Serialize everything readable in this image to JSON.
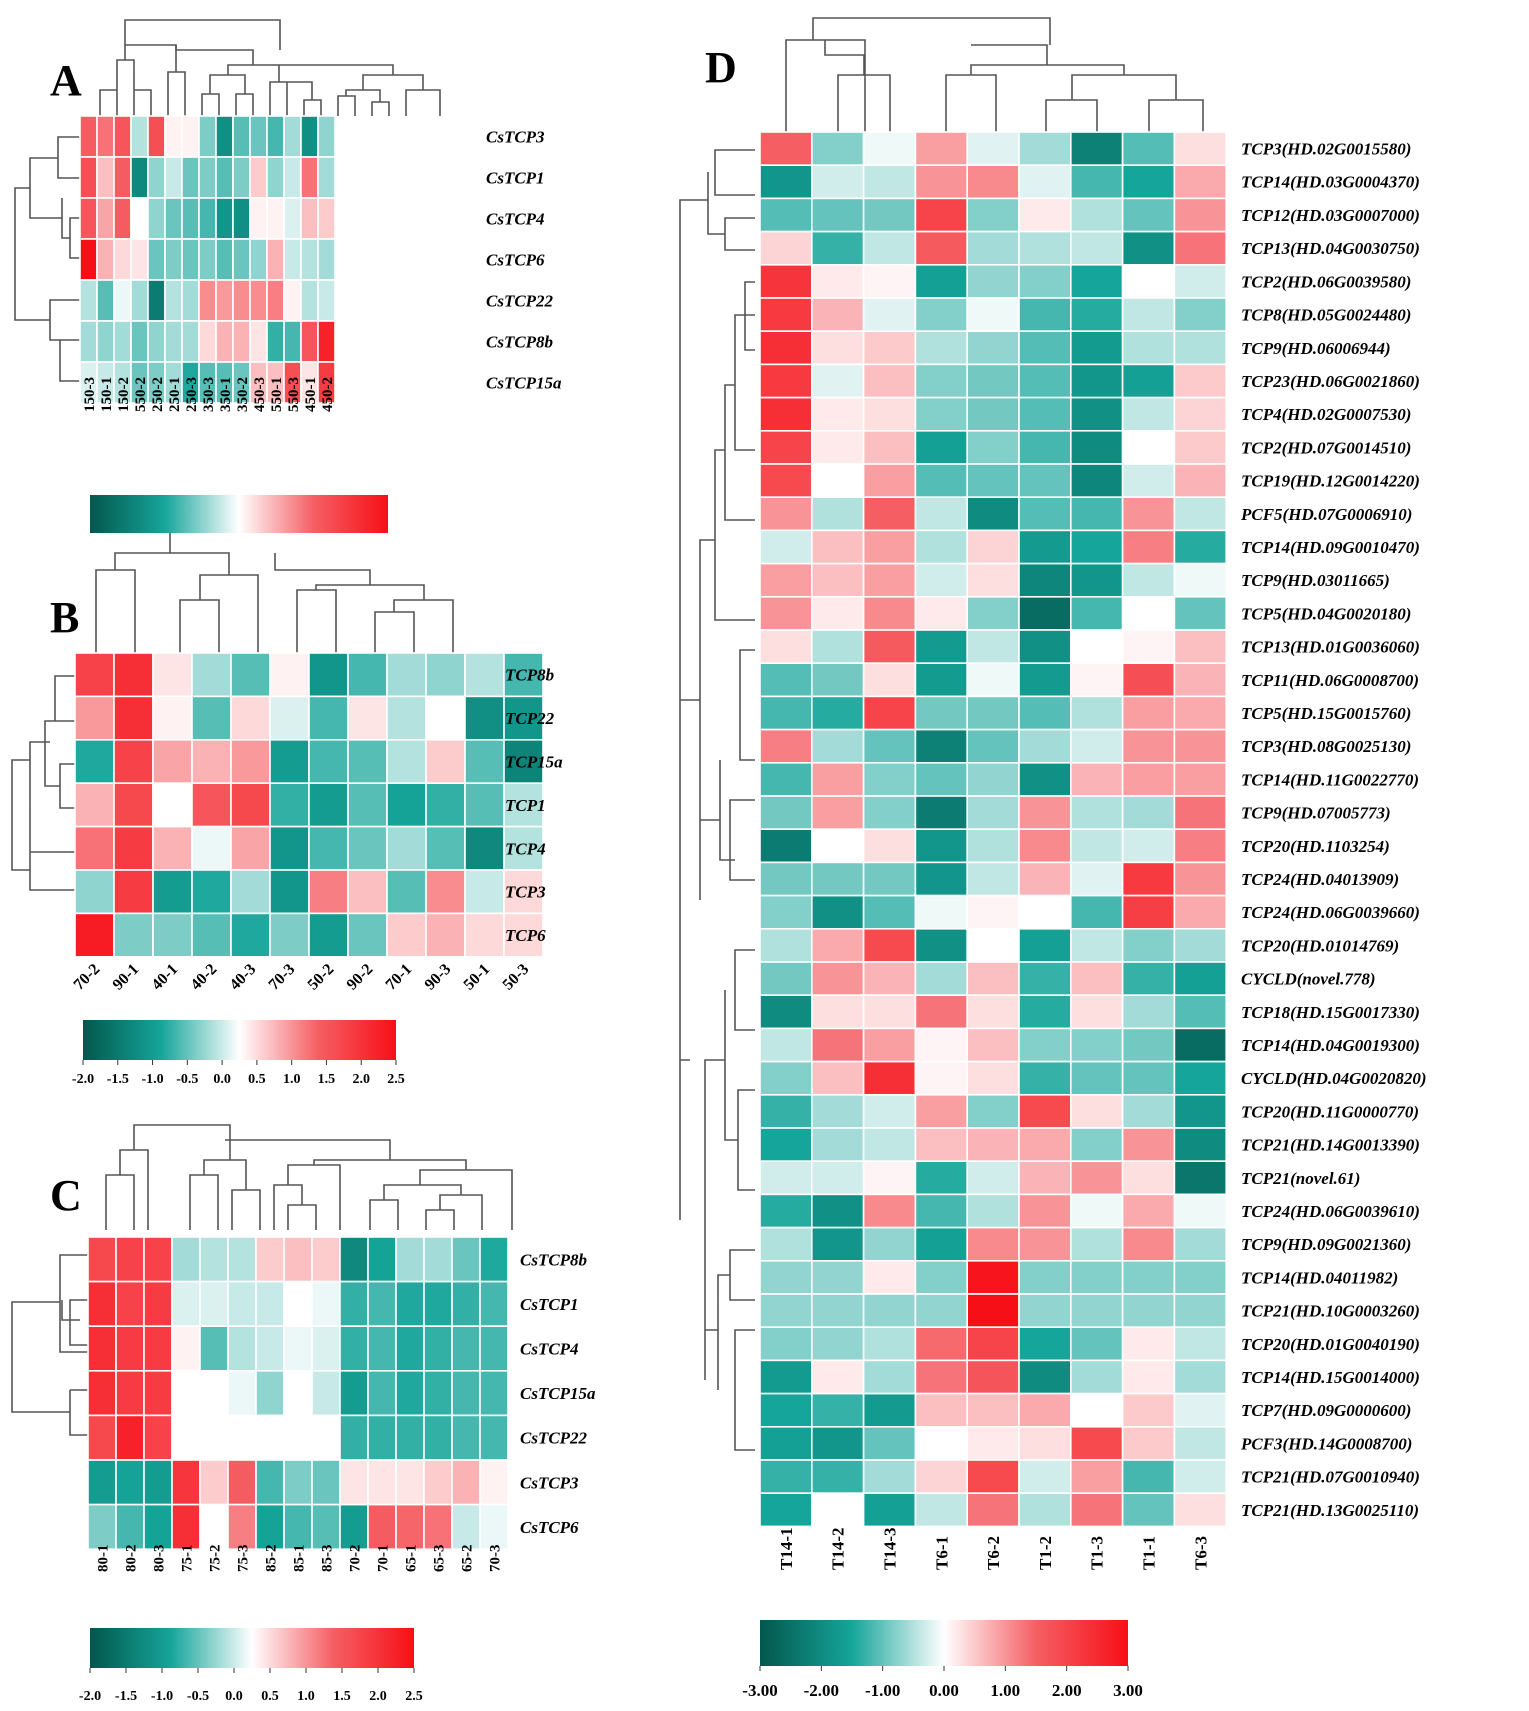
{
  "colors": {
    "low": "#03574d",
    "mid1": "#16a59a",
    "zero": "#ffffff",
    "mid2": "#f55f64",
    "high": "#f70f17"
  },
  "chart_data": [
    {
      "type": "heatmap",
      "panel": "A",
      "rows": [
        "CsTCP3",
        "CsTCP1",
        "CsTCP4",
        "CsTCP6",
        "CsTCP22",
        "CsTCP8b",
        "CsTCP15a"
      ],
      "columns": [
        "150-3",
        "150-1",
        "150-2",
        "550-2",
        "250-2",
        "250-1",
        "250-3",
        "350-3",
        "350-1",
        "350-2",
        "450-3",
        "550-1",
        "550-3",
        "450-1",
        "450-2"
      ],
      "values": [
        [
          1.3,
          1.1,
          1.4,
          -0.4,
          1.5,
          0.1,
          0.1,
          -0.7,
          -1.6,
          -0.9,
          -0.8,
          -1.0,
          -0.5,
          -1.6,
          -0.6
        ],
        [
          1.5,
          0.5,
          1.3,
          -1.7,
          -0.6,
          -0.3,
          -0.8,
          -0.7,
          -0.9,
          -0.7,
          0.4,
          -0.6,
          -0.3,
          1.1,
          -0.5
        ],
        [
          1.4,
          0.7,
          1.3,
          0.0,
          -0.6,
          -0.8,
          -0.9,
          -1.0,
          -1.5,
          -1.6,
          0.1,
          0.1,
          -0.2,
          0.5,
          0.4
        ],
        [
          2.5,
          0.6,
          0.3,
          0.2,
          -0.8,
          -0.7,
          -0.8,
          -0.7,
          -0.9,
          -0.8,
          -0.6,
          0.6,
          -0.3,
          -0.4,
          -0.5
        ],
        [
          -0.4,
          -0.9,
          -0.1,
          -0.5,
          -1.9,
          -0.4,
          -0.5,
          0.9,
          0.8,
          0.9,
          0.9,
          1.0,
          0.1,
          -0.4,
          -0.3
        ],
        [
          -0.5,
          -0.6,
          -0.5,
          -0.8,
          -0.6,
          -0.5,
          -0.5,
          0.3,
          0.6,
          0.6,
          0.2,
          -1.1,
          -1.0,
          1.4,
          2.2
        ],
        [
          -0.2,
          -0.3,
          -0.4,
          -0.8,
          -0.7,
          -0.5,
          -1.2,
          -0.9,
          -0.9,
          -0.8,
          0.5,
          0.5,
          1.5,
          0.2,
          1.8
        ]
      ],
      "colorbar": {
        "range": [
          -2.0,
          2.5
        ],
        "ticks": []
      }
    },
    {
      "type": "heatmap",
      "panel": "B",
      "rows": [
        "TCP8b",
        "TCP22",
        "TCP15a",
        "TCP1",
        "TCP4",
        "TCP3",
        "TCP6"
      ],
      "columns": [
        "70-2",
        "90-1",
        "40-1",
        "40-2",
        "40-3",
        "70-3",
        "50-2",
        "90-2",
        "70-1",
        "90-3",
        "50-1",
        "50-3"
      ],
      "values": [
        [
          1.7,
          2.0,
          0.2,
          -0.5,
          -0.9,
          0.1,
          -1.5,
          -1.0,
          -0.5,
          -0.6,
          -0.4,
          -1.0
        ],
        [
          0.8,
          2.0,
          0.1,
          -0.9,
          0.3,
          -0.2,
          -1.0,
          0.2,
          -0.4,
          0.0,
          -1.6,
          -1.5
        ],
        [
          -1.2,
          1.7,
          0.7,
          0.6,
          0.8,
          -1.4,
          -1.0,
          -0.9,
          -0.4,
          0.4,
          -0.9,
          -1.8
        ],
        [
          0.6,
          1.6,
          0.0,
          1.4,
          1.6,
          -1.1,
          -1.4,
          -0.9,
          -1.3,
          -1.1,
          -0.9,
          -0.4
        ],
        [
          1.1,
          1.8,
          0.6,
          -0.1,
          0.7,
          -1.5,
          -1.0,
          -0.8,
          -0.5,
          -0.9,
          -1.7,
          -0.4
        ],
        [
          -0.6,
          1.8,
          -1.4,
          -1.2,
          -0.5,
          -1.5,
          1.0,
          0.5,
          -0.9,
          0.9,
          -0.3,
          0.3
        ],
        [
          2.3,
          -0.7,
          -0.7,
          -0.9,
          -1.2,
          -0.7,
          -1.4,
          -0.8,
          0.4,
          0.6,
          0.3,
          0.3
        ]
      ],
      "colorbar": {
        "range": [
          -2.0,
          2.5
        ],
        "ticks": [
          "-2.0",
          "-1.5",
          "-1.0",
          "-0.5",
          "0.0",
          "0.5",
          "1.0",
          "1.5",
          "2.0",
          "2.5"
        ]
      }
    },
    {
      "type": "heatmap",
      "panel": "C",
      "rows": [
        "CsTCP8b",
        "CsTCP1",
        "CsTCP4",
        "CsTCP15a",
        "CsTCP22",
        "CsTCP3",
        "CsTCP6"
      ],
      "columns": [
        "80-1",
        "80-2",
        "80-3",
        "75-1",
        "75-2",
        "75-3",
        "85-2",
        "85-1",
        "85-3",
        "70-2",
        "70-1",
        "65-1",
        "65-3",
        "65-2",
        "70-3"
      ],
      "values": [
        [
          1.6,
          1.7,
          1.7,
          -0.5,
          -0.4,
          -0.4,
          0.4,
          0.5,
          0.4,
          -1.7,
          -1.3,
          -0.5,
          -0.5,
          -0.8,
          -1.2
        ],
        [
          2.0,
          1.7,
          1.8,
          -0.2,
          -0.2,
          -0.3,
          -0.3,
          0.0,
          -0.1,
          -1.1,
          -1.0,
          -1.2,
          -1.2,
          -1.1,
          -1.0
        ],
        [
          2.0,
          1.8,
          1.8,
          0.1,
          -0.9,
          -0.4,
          -0.3,
          -0.1,
          -0.2,
          -1.1,
          -1.0,
          -1.2,
          -1.1,
          -1.0,
          -1.0
        ],
        [
          2.0,
          1.8,
          1.8,
          0.0,
          0.0,
          -0.1,
          -0.6,
          0.0,
          -0.3,
          -1.4,
          -1.0,
          -1.2,
          -1.1,
          -1.0,
          -1.0
        ],
        [
          1.6,
          2.2,
          1.7,
          0.0,
          0.0,
          0.0,
          0.0,
          0.0,
          0.0,
          -1.1,
          -1.1,
          -1.1,
          -1.1,
          -1.0,
          -1.0
        ],
        [
          -1.4,
          -1.3,
          -1.4,
          1.9,
          0.4,
          1.3,
          -1.0,
          -0.7,
          -0.8,
          0.2,
          0.2,
          0.2,
          0.4,
          0.6,
          0.1
        ],
        [
          -0.7,
          -1.0,
          -1.3,
          2.0,
          0.0,
          1.0,
          -1.3,
          -1.0,
          -0.9,
          -1.4,
          1.3,
          1.2,
          1.1,
          -0.3,
          -0.1
        ]
      ],
      "colorbar": {
        "range": [
          -2.0,
          2.5
        ],
        "ticks": [
          "-2.0",
          "-1.5",
          "-1.0",
          "-0.5",
          "0.0",
          "0.5",
          "1.0",
          "1.5",
          "2.0",
          "2.5"
        ]
      }
    },
    {
      "type": "heatmap",
      "panel": "D",
      "rows": [
        "TCP3(HD.02G0015580)",
        "TCP14(HD.03G0004370)",
        "TCP12(HD.03G0007000)",
        "TCP13(HD.04G0030750)",
        "TCP2(HD.06G0039580)",
        "TCP8(HD.05G0024480)",
        "TCP9(HD.06006944)",
        "TCP23(HD.06G0021860)",
        "TCP4(HD.02G0007530)",
        "TCP2(HD.07G0014510)",
        "TCP19(HD.12G0014220)",
        "PCF5(HD.07G0006910)",
        "TCP14(HD.09G0010470)",
        "TCP9(HD.03011665)",
        "TCP5(HD.04G0020180)",
        "TCP13(HD.01G0036060)",
        "TCP11(HD.06G0008700)",
        "TCP5(HD.15G0015760)",
        "TCP3(HD.08G0025130)",
        "TCP14(HD.11G0022770)",
        "TCP9(HD.07005773)",
        "TCP20(HD.1103254)",
        "TCP24(HD.04013909)",
        "TCP24(HD.06G0039660)",
        "TCP20(HD.01014769)",
        "CYCLD(novel.778)",
        "TCP18(HD.15G0017330)",
        "TCP14(HD.04G0019300)",
        "CYCLD(HD.04G0020820)",
        "TCP20(HD.11G0000770)",
        "TCP21(HD.14G0013390)",
        "TCP21(novel.61)",
        "TCP24(HD.06G0039610)",
        "TCP9(HD.09G0021360)",
        "TCP14(HD.04011982)",
        "TCP21(HD.10G0003260)",
        "TCP20(HD.01G0040190)",
        "TCP14(HD.15G0014000)",
        "TCP7(HD.09G0000600)",
        "PCF3(HD.14G0008700)",
        "TCP21(HD.07G0010940)",
        "TCP21(HD.13G0025110)"
      ],
      "columns": [
        "T14-1",
        "T14-2",
        "T14-3",
        "T6-1",
        "T6-2",
        "T1-2",
        "T1-3",
        "T1-1",
        "T6-3"
      ],
      "values": [
        [
          1.5,
          -0.8,
          -0.1,
          0.9,
          -0.2,
          -0.6,
          -2.2,
          -1.1,
          0.3
        ],
        [
          -1.8,
          -0.3,
          -0.4,
          1.0,
          1.1,
          -0.2,
          -1.2,
          -1.5,
          0.8
        ],
        [
          -1.1,
          -1.0,
          -0.9,
          2.0,
          -0.8,
          0.2,
          -0.5,
          -1.0,
          1.0
        ],
        [
          0.4,
          -1.3,
          -0.4,
          1.6,
          -0.6,
          -0.5,
          -0.4,
          -1.9,
          1.3
        ],
        [
          2.3,
          0.2,
          0.1,
          -1.6,
          -0.7,
          -0.8,
          -1.5,
          0.0,
          -0.3
        ],
        [
          2.2,
          0.7,
          -0.2,
          -0.8,
          -0.1,
          -1.2,
          -1.4,
          -0.4,
          -0.8
        ],
        [
          2.4,
          0.3,
          0.5,
          -0.5,
          -0.7,
          -1.1,
          -1.7,
          -0.5,
          -0.5
        ],
        [
          2.2,
          -0.2,
          0.6,
          -0.8,
          -0.9,
          -1.1,
          -1.8,
          -1.6,
          0.5
        ],
        [
          2.4,
          0.2,
          0.3,
          -0.8,
          -0.9,
          -1.1,
          -1.9,
          -0.4,
          0.4
        ],
        [
          2.0,
          0.2,
          0.6,
          -1.6,
          -0.8,
          -1.2,
          -2.0,
          0.0,
          0.5
        ],
        [
          1.9,
          0.0,
          0.9,
          -1.1,
          -1.0,
          -1.0,
          -2.1,
          -0.3,
          0.7
        ],
        [
          1.0,
          -0.5,
          1.5,
          -0.4,
          -2.0,
          -1.1,
          -1.2,
          1.0,
          -0.4
        ],
        [
          -0.3,
          0.6,
          0.9,
          -0.5,
          0.4,
          -1.7,
          -1.5,
          1.2,
          -1.4
        ],
        [
          0.9,
          0.6,
          0.9,
          -0.3,
          0.3,
          -2.1,
          -1.8,
          -0.4,
          -0.1
        ],
        [
          1.0,
          0.2,
          1.1,
          0.2,
          -0.8,
          -2.6,
          -1.2,
          0.0,
          -1.0
        ],
        [
          0.3,
          -0.5,
          1.6,
          -1.7,
          -0.4,
          -1.9,
          0.0,
          0.1,
          0.6
        ],
        [
          -1.1,
          -0.9,
          0.3,
          -1.7,
          -0.1,
          -1.7,
          0.1,
          1.8,
          0.7
        ],
        [
          -1.2,
          -1.4,
          2.0,
          -0.9,
          -0.9,
          -1.1,
          -0.5,
          0.9,
          0.8
        ],
        [
          1.2,
          -0.6,
          -1.0,
          -2.2,
          -1.0,
          -0.6,
          -0.3,
          1.0,
          1.0
        ],
        [
          -1.2,
          0.9,
          -0.8,
          -1.0,
          -0.7,
          -1.9,
          0.7,
          0.9,
          0.9
        ],
        [
          -0.9,
          0.9,
          -0.8,
          -2.3,
          -0.6,
          1.0,
          -0.5,
          -0.6,
          1.3
        ],
        [
          -2.3,
          0.0,
          0.3,
          -1.8,
          -0.5,
          1.1,
          -0.4,
          -0.3,
          1.2
        ],
        [
          -0.9,
          -0.9,
          -0.9,
          -1.8,
          -0.4,
          0.7,
          -0.2,
          2.2,
          1.0
        ],
        [
          -0.8,
          -1.9,
          -1.1,
          -0.1,
          0.1,
          0.0,
          -1.2,
          2.1,
          0.8
        ],
        [
          -0.5,
          0.8,
          1.9,
          -1.9,
          0.0,
          -1.6,
          -0.4,
          -0.8,
          -0.6
        ],
        [
          -0.9,
          1.0,
          0.7,
          -0.6,
          0.6,
          -1.3,
          0.6,
          -1.3,
          -1.6
        ],
        [
          -2.0,
          0.3,
          0.3,
          1.3,
          0.3,
          -1.4,
          0.3,
          -0.6,
          -1.1
        ],
        [
          -0.4,
          1.3,
          0.9,
          0.1,
          0.6,
          -0.8,
          -0.8,
          -0.9,
          -2.6
        ],
        [
          -0.8,
          0.6,
          2.4,
          0.1,
          0.3,
          -1.3,
          -1.0,
          -1.0,
          -1.5
        ],
        [
          -1.3,
          -0.6,
          -0.3,
          0.9,
          -0.8,
          1.9,
          0.3,
          -0.6,
          -1.8
        ],
        [
          -1.5,
          -0.6,
          -0.4,
          0.6,
          0.7,
          0.8,
          -0.8,
          1.0,
          -2.0
        ],
        [
          -0.3,
          -0.3,
          0.1,
          -1.4,
          -0.3,
          0.7,
          1.0,
          0.3,
          -2.4
        ],
        [
          -1.4,
          -1.9,
          1.1,
          -1.2,
          -0.5,
          1.0,
          -0.1,
          0.8,
          -0.1
        ],
        [
          -0.5,
          -1.8,
          -0.7,
          -1.6,
          1.1,
          1.0,
          -0.5,
          1.1,
          -0.6
        ],
        [
          -0.7,
          -0.7,
          0.2,
          -0.8,
          2.9,
          -0.8,
          -0.8,
          -0.8,
          -0.8
        ],
        [
          -0.7,
          -0.7,
          -0.7,
          -0.7,
          3.0,
          -0.7,
          -0.7,
          -0.7,
          -0.7
        ],
        [
          -0.8,
          -0.7,
          -0.5,
          1.4,
          2.0,
          -1.5,
          -1.0,
          0.2,
          -0.4
        ],
        [
          -1.7,
          0.2,
          -0.6,
          1.3,
          1.7,
          -2.0,
          -0.6,
          0.2,
          -0.6
        ],
        [
          -1.5,
          -1.3,
          -1.7,
          0.6,
          0.6,
          0.8,
          0.0,
          0.5,
          -0.2
        ],
        [
          -1.6,
          -1.8,
          -1.0,
          0.0,
          0.2,
          0.3,
          1.9,
          0.5,
          -0.4
        ],
        [
          -1.3,
          -1.3,
          -0.6,
          0.4,
          1.9,
          -0.3,
          0.9,
          -1.2,
          -0.3
        ],
        [
          -1.5,
          0.0,
          -1.6,
          -0.4,
          1.3,
          -0.5,
          1.3,
          -1.0,
          0.3
        ]
      ],
      "colorbar": {
        "range": [
          -3.0,
          3.0
        ],
        "ticks": [
          "-3.00",
          "-2.00",
          "-1.00",
          "0.00",
          "1.00",
          "2.00",
          "3.00"
        ]
      }
    }
  ]
}
